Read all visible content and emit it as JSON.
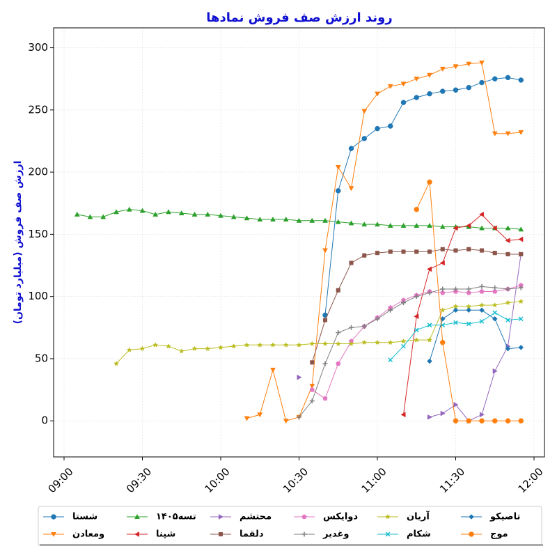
{
  "chart_data": {
    "type": "line",
    "title": "روند ارزش صف فروش نمادها",
    "y_label": "ارزش صف فروش (میلیارد تومان)",
    "x": [
      "09:05",
      "09:10",
      "09:15",
      "09:20",
      "09:25",
      "09:30",
      "09:35",
      "09:40",
      "09:45",
      "09:50",
      "09:55",
      "10:00",
      "10:05",
      "10:10",
      "10:15",
      "10:20",
      "10:25",
      "10:30",
      "10:35",
      "10:40",
      "10:45",
      "10:50",
      "10:55",
      "11:00",
      "11:05",
      "11:10",
      "11:15",
      "11:20",
      "11:25",
      "11:30",
      "11:35",
      "11:40",
      "11:45",
      "11:50",
      "11:55"
    ],
    "xlim": [
      "08:56",
      "12:04"
    ],
    "xticks": [
      "09:00",
      "09:30",
      "10:00",
      "10:30",
      "11:00",
      "11:30",
      "12:00"
    ],
    "ylim": [
      -29,
      316
    ],
    "yticks": [
      0,
      50,
      100,
      150,
      200,
      250,
      300
    ],
    "grid": true,
    "legend_position": "bottom",
    "series": [
      {
        "name": "شستا",
        "color": "#1f77b4",
        "marker": "o",
        "values": [
          null,
          null,
          null,
          null,
          null,
          null,
          null,
          null,
          null,
          null,
          null,
          null,
          null,
          null,
          null,
          null,
          null,
          null,
          null,
          85,
          185,
          219,
          227,
          235,
          237,
          256,
          260,
          263,
          265,
          266,
          268,
          272,
          275,
          276,
          274
        ]
      },
      {
        "name": "ومعادن",
        "color": "#ff7f0e",
        "marker": "v",
        "values": [
          null,
          null,
          null,
          null,
          null,
          null,
          null,
          null,
          null,
          null,
          null,
          null,
          null,
          2,
          5,
          41,
          0,
          3,
          28,
          137,
          204,
          187,
          249,
          263,
          269,
          271,
          275,
          278,
          283,
          285,
          287,
          288,
          231,
          231,
          232
        ]
      },
      {
        "name": "تسه۱۴۰۵",
        "color": "#2ca02c",
        "marker": "^",
        "values": [
          166,
          164,
          164,
          168,
          170,
          169,
          166,
          168,
          167,
          166,
          166,
          165,
          164,
          163,
          162,
          162,
          162,
          161,
          161,
          161,
          160,
          159,
          158,
          158,
          157,
          157,
          157,
          157,
          156,
          156,
          156,
          155,
          155,
          155,
          154
        ]
      },
      {
        "name": "شپنا",
        "color": "#d62728",
        "marker": "<",
        "values": [
          null,
          null,
          null,
          null,
          null,
          null,
          null,
          null,
          null,
          null,
          null,
          null,
          null,
          null,
          null,
          null,
          null,
          null,
          null,
          null,
          null,
          null,
          null,
          null,
          null,
          5,
          84,
          122,
          127,
          155,
          157,
          166,
          155,
          145,
          146
        ]
      },
      {
        "name": "محتشم",
        "color": "#9467bd",
        "marker": ">",
        "values": [
          null,
          null,
          null,
          null,
          null,
          null,
          null,
          null,
          null,
          null,
          null,
          null,
          null,
          null,
          null,
          null,
          null,
          35,
          null,
          null,
          null,
          null,
          null,
          null,
          null,
          null,
          null,
          3,
          6,
          13,
          0,
          5,
          40,
          60,
          134
        ]
      },
      {
        "name": "دلقما",
        "color": "#8c564b",
        "marker": "s",
        "values": [
          null,
          null,
          null,
          null,
          null,
          null,
          null,
          null,
          null,
          null,
          null,
          null,
          null,
          null,
          null,
          null,
          null,
          null,
          47,
          81,
          105,
          127,
          133,
          135,
          136,
          136,
          136,
          136,
          138,
          137,
          138,
          137,
          135,
          134,
          134
        ]
      },
      {
        "name": "دوایکس",
        "color": "#e377c2",
        "marker": "p",
        "values": [
          null,
          null,
          null,
          null,
          null,
          null,
          null,
          null,
          null,
          null,
          null,
          null,
          null,
          null,
          null,
          null,
          null,
          null,
          25,
          18,
          46,
          64,
          76,
          83,
          91,
          97,
          101,
          104,
          103,
          104,
          103,
          104,
          104,
          106,
          109
        ]
      },
      {
        "name": "وغدیر",
        "color": "#7f7f7f",
        "marker": "+",
        "values": [
          null,
          null,
          null,
          null,
          null,
          null,
          null,
          null,
          null,
          null,
          null,
          null,
          null,
          null,
          null,
          null,
          null,
          3,
          16,
          46,
          71,
          75,
          76,
          82,
          89,
          95,
          100,
          103,
          106,
          106,
          106,
          108,
          107,
          106,
          107
        ]
      },
      {
        "name": "آریان",
        "color": "#bcbd22",
        "marker": "*",
        "values": [
          null,
          null,
          null,
          46,
          57,
          58,
          61,
          60,
          56,
          58,
          58,
          59,
          60,
          61,
          61,
          61,
          61,
          61,
          62,
          62,
          62,
          62,
          63,
          63,
          63,
          64,
          65,
          65,
          89,
          92,
          92,
          93,
          93,
          95,
          96
        ]
      },
      {
        "name": "شکام",
        "color": "#17becf",
        "marker": "x",
        "values": [
          null,
          null,
          null,
          null,
          null,
          null,
          null,
          null,
          null,
          null,
          null,
          null,
          null,
          null,
          null,
          null,
          null,
          null,
          null,
          null,
          null,
          null,
          null,
          null,
          49,
          60,
          73,
          77,
          77,
          79,
          78,
          80,
          87,
          81,
          82
        ]
      },
      {
        "name": "تاصیکو",
        "color": "#1f77b4",
        "marker": "D",
        "values": [
          null,
          null,
          null,
          null,
          null,
          null,
          null,
          null,
          null,
          null,
          null,
          null,
          null,
          null,
          null,
          null,
          null,
          null,
          null,
          null,
          null,
          null,
          null,
          null,
          null,
          null,
          null,
          48,
          82,
          89,
          89,
          89,
          82,
          58,
          59
        ]
      },
      {
        "name": "موج",
        "color": "#ff7f0e",
        "marker": "o",
        "values": [
          null,
          null,
          null,
          null,
          null,
          null,
          null,
          null,
          null,
          null,
          null,
          null,
          null,
          null,
          null,
          null,
          null,
          null,
          null,
          null,
          null,
          null,
          null,
          null,
          null,
          null,
          170,
          192,
          63,
          0,
          0,
          0,
          0,
          0,
          0
        ]
      }
    ]
  }
}
